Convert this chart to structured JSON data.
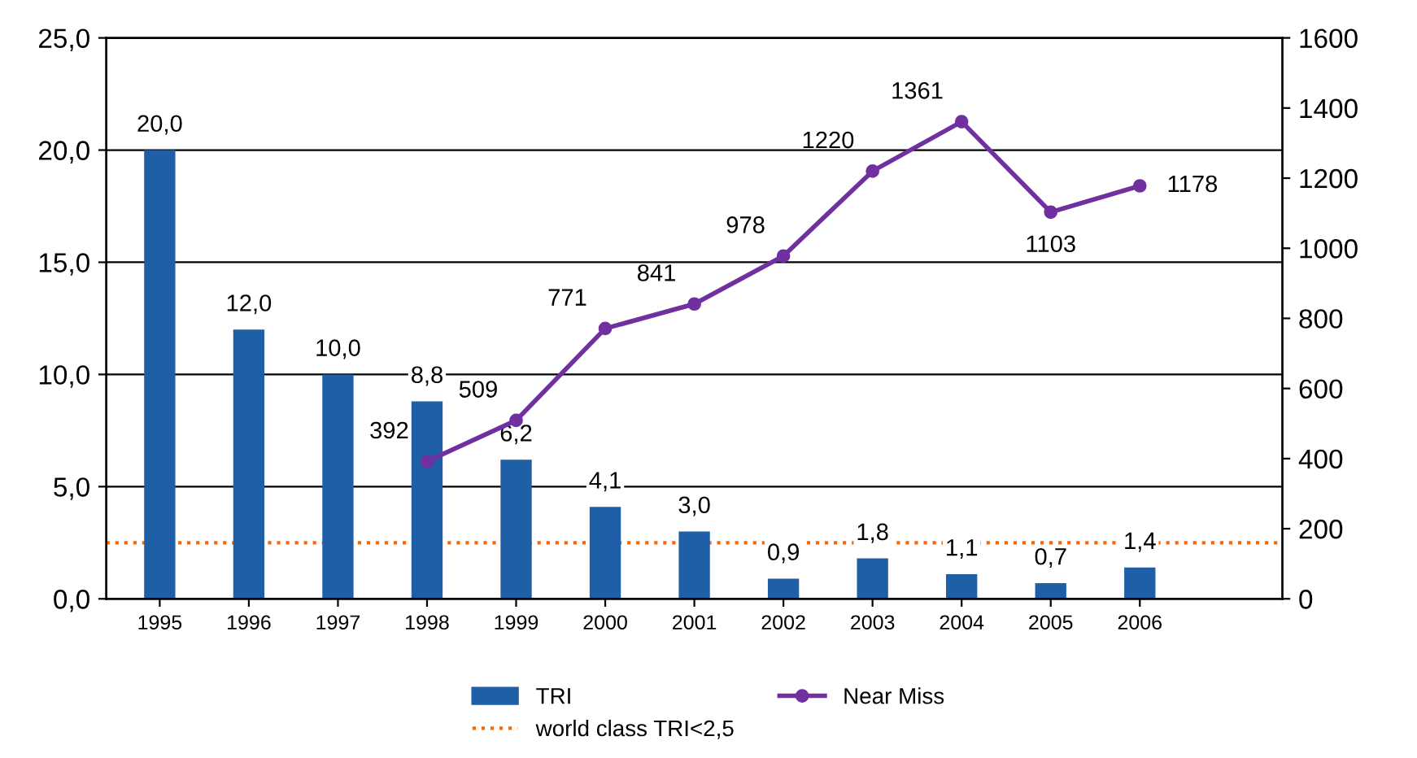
{
  "chart_data": {
    "type": "bar",
    "categories": [
      "1995",
      "1996",
      "1997",
      "1998",
      "1999",
      "2000",
      "2001",
      "2002",
      "2003",
      "2004",
      "2005",
      "2006"
    ],
    "series": [
      {
        "name": "TRI",
        "color": "#1f5fa8",
        "values": [
          20.0,
          12.0,
          10.0,
          8.8,
          6.2,
          4.1,
          3.0,
          0.9,
          1.8,
          1.1,
          0.7,
          1.4
        ],
        "value_labels": [
          "20,0",
          "12,0",
          "10,0",
          "8,8",
          "6,2",
          "4,1",
          "3,0",
          "0,9",
          "1,8",
          "1,1",
          "0,7",
          "1,4"
        ]
      },
      {
        "name": "Near Miss",
        "type": "line",
        "axis": "y2",
        "color": "#7030a0",
        "marker": "circle",
        "values": [
          null,
          null,
          null,
          392,
          509,
          771,
          841,
          978,
          1220,
          1361,
          1103,
          1178
        ],
        "value_labels": [
          null,
          null,
          null,
          "392",
          "509",
          "771",
          "841",
          "978",
          "1220",
          "1361",
          "1103",
          "1178"
        ]
      }
    ],
    "ylim": [
      0,
      25
    ],
    "yticks": [
      {
        "value": 0,
        "label": "0,0"
      },
      {
        "value": 5,
        "label": "5,0"
      },
      {
        "value": 10,
        "label": "10,0"
      },
      {
        "value": 15,
        "label": "15,0"
      },
      {
        "value": 20,
        "label": "20,0"
      },
      {
        "value": 25,
        "label": "25,0"
      }
    ],
    "y2lim": [
      0,
      1600
    ],
    "y2ticks": [
      0,
      200,
      400,
      600,
      800,
      1000,
      1200,
      1400,
      1600
    ],
    "ref_lines": [
      {
        "axis": "y",
        "value": 2.5,
        "label": "world class TRI<2,5",
        "color": "#ff6600",
        "line_style": "dotted"
      }
    ],
    "grid": "y",
    "legend": "bottom"
  }
}
